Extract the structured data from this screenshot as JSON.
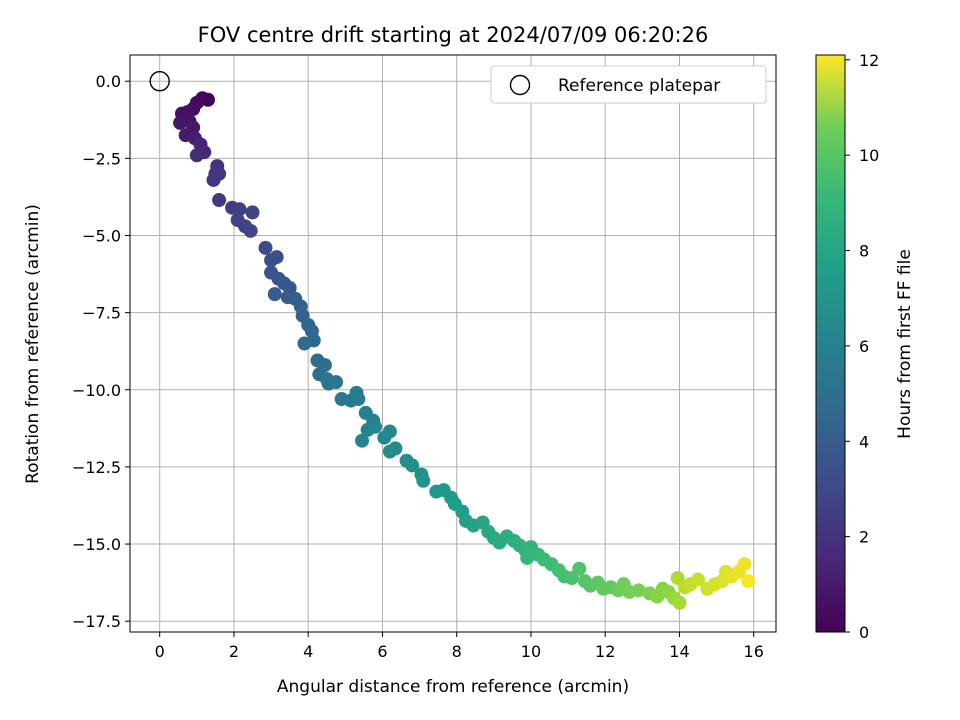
{
  "chart_data": {
    "type": "scatter",
    "title": "FOV centre drift starting at 2024/07/09 06:20:26",
    "xlabel": "Angular distance from reference (arcmin)",
    "ylabel": "Rotation from reference (arcmin)",
    "xlim": [
      -0.8,
      16.6
    ],
    "ylim": [
      -17.85,
      0.85
    ],
    "xticks": [
      0,
      2,
      4,
      6,
      8,
      10,
      12,
      14,
      16
    ],
    "xtick_labels": [
      "0",
      "2",
      "4",
      "6",
      "8",
      "10",
      "12",
      "14",
      "16"
    ],
    "yticks": [
      0.0,
      -2.5,
      -5.0,
      -7.5,
      -10.0,
      -12.5,
      -15.0,
      -17.5
    ],
    "ytick_labels": [
      "0.0",
      "−2.5",
      "−5.0",
      "−7.5",
      "−10.0",
      "−12.5",
      "−15.0",
      "−17.5"
    ],
    "grid": true,
    "legend": {
      "position": "top-right",
      "entries": [
        "Reference platepar"
      ]
    },
    "reference_point": {
      "x": 0.0,
      "y": 0.0
    },
    "colorbar": {
      "label": "Hours from first FF file",
      "range": [
        0,
        12.1
      ],
      "ticks": [
        0,
        2,
        4,
        6,
        8,
        10,
        12
      ],
      "tick_labels": [
        "0",
        "2",
        "4",
        "6",
        "8",
        "10",
        "12"
      ],
      "colormap": "viridis"
    },
    "series": [
      {
        "points": [
          [
            1.3,
            -0.6,
            0.1
          ],
          [
            1.15,
            -0.55,
            0.2
          ],
          [
            1.0,
            -0.7,
            0.3
          ],
          [
            0.9,
            -0.9,
            0.4
          ],
          [
            0.75,
            -1.0,
            0.5
          ],
          [
            0.6,
            -1.05,
            0.55
          ],
          [
            0.8,
            -1.3,
            0.6
          ],
          [
            0.55,
            -1.35,
            0.7
          ],
          [
            0.9,
            -1.5,
            0.8
          ],
          [
            0.7,
            -1.75,
            0.9
          ],
          [
            0.95,
            -1.85,
            1.0
          ],
          [
            1.1,
            -2.05,
            1.2
          ],
          [
            1.2,
            -2.3,
            1.4
          ],
          [
            1.0,
            -2.4,
            1.5
          ],
          [
            1.55,
            -2.75,
            1.7
          ],
          [
            1.5,
            -3.0,
            1.8
          ],
          [
            1.45,
            -3.2,
            1.9
          ],
          [
            1.6,
            -3.0,
            2.0
          ],
          [
            1.6,
            -3.85,
            2.1
          ],
          [
            1.95,
            -4.1,
            2.2
          ],
          [
            2.15,
            -4.15,
            2.3
          ],
          [
            2.1,
            -4.5,
            2.35
          ],
          [
            2.3,
            -4.7,
            2.4
          ],
          [
            2.5,
            -4.25,
            2.5
          ],
          [
            2.45,
            -4.85,
            2.6
          ],
          [
            2.85,
            -5.4,
            2.8
          ],
          [
            3.0,
            -5.8,
            2.9
          ],
          [
            3.15,
            -5.7,
            3.0
          ],
          [
            3.0,
            -6.2,
            3.1
          ],
          [
            3.2,
            -6.4,
            3.2
          ],
          [
            3.35,
            -6.55,
            3.3
          ],
          [
            3.5,
            -6.7,
            3.4
          ],
          [
            3.1,
            -6.9,
            3.45
          ],
          [
            3.45,
            -7.0,
            3.5
          ],
          [
            3.65,
            -7.05,
            3.6
          ],
          [
            3.8,
            -7.3,
            3.7
          ],
          [
            3.85,
            -7.6,
            3.8
          ],
          [
            4.0,
            -7.9,
            3.9
          ],
          [
            4.1,
            -8.1,
            4.0
          ],
          [
            4.15,
            -8.4,
            4.1
          ],
          [
            3.9,
            -8.5,
            4.2
          ],
          [
            4.25,
            -9.05,
            4.3
          ],
          [
            4.45,
            -9.2,
            4.4
          ],
          [
            4.3,
            -9.5,
            4.5
          ],
          [
            4.55,
            -9.8,
            4.6
          ],
          [
            4.5,
            -9.65,
            4.65
          ],
          [
            4.75,
            -9.75,
            4.7
          ],
          [
            4.9,
            -10.3,
            4.8
          ],
          [
            5.15,
            -10.35,
            4.9
          ],
          [
            5.35,
            -10.3,
            5.0
          ],
          [
            5.3,
            -10.1,
            5.05
          ],
          [
            5.55,
            -10.75,
            5.2
          ],
          [
            5.75,
            -11.0,
            5.3
          ],
          [
            5.6,
            -11.3,
            5.4
          ],
          [
            5.45,
            -11.65,
            5.5
          ],
          [
            5.8,
            -11.2,
            5.55
          ],
          [
            6.05,
            -11.55,
            5.6
          ],
          [
            6.2,
            -11.35,
            5.7
          ],
          [
            6.35,
            -11.9,
            5.8
          ],
          [
            6.2,
            -12.0,
            5.9
          ],
          [
            6.65,
            -12.3,
            6.0
          ],
          [
            6.8,
            -12.45,
            6.1
          ],
          [
            7.05,
            -12.75,
            6.2
          ],
          [
            7.1,
            -12.95,
            6.3
          ],
          [
            7.45,
            -13.3,
            6.4
          ],
          [
            7.65,
            -13.25,
            6.5
          ],
          [
            7.85,
            -13.5,
            6.6
          ],
          [
            7.95,
            -13.7,
            6.7
          ],
          [
            8.15,
            -13.95,
            6.8
          ],
          [
            8.25,
            -14.25,
            6.9
          ],
          [
            8.45,
            -14.4,
            7.0
          ],
          [
            8.7,
            -14.3,
            7.1
          ],
          [
            8.85,
            -14.6,
            7.2
          ],
          [
            9.0,
            -14.8,
            7.3
          ],
          [
            9.15,
            -14.95,
            7.4
          ],
          [
            9.35,
            -14.75,
            7.5
          ],
          [
            9.55,
            -14.9,
            7.6
          ],
          [
            9.7,
            -15.05,
            7.7
          ],
          [
            9.85,
            -15.2,
            7.8
          ],
          [
            10.0,
            -15.1,
            7.9
          ],
          [
            9.9,
            -15.45,
            8.0
          ],
          [
            10.2,
            -15.35,
            8.1
          ],
          [
            10.35,
            -15.5,
            8.2
          ],
          [
            10.55,
            -15.65,
            8.3
          ],
          [
            10.75,
            -15.85,
            8.4
          ],
          [
            10.9,
            -16.05,
            8.5
          ],
          [
            11.1,
            -16.1,
            8.6
          ],
          [
            11.3,
            -15.8,
            8.7
          ],
          [
            11.45,
            -16.2,
            8.8
          ],
          [
            11.6,
            -16.35,
            8.9
          ],
          [
            11.8,
            -16.25,
            9.0
          ],
          [
            11.95,
            -16.45,
            9.1
          ],
          [
            12.15,
            -16.4,
            9.2
          ],
          [
            12.35,
            -16.5,
            9.3
          ],
          [
            12.5,
            -16.3,
            9.4
          ],
          [
            12.65,
            -16.55,
            9.5
          ],
          [
            12.9,
            -16.5,
            9.6
          ],
          [
            13.2,
            -16.6,
            9.7
          ],
          [
            13.4,
            -16.7,
            9.8
          ],
          [
            13.55,
            -16.45,
            9.9
          ],
          [
            13.7,
            -16.55,
            10.0
          ],
          [
            13.85,
            -16.75,
            10.2
          ],
          [
            14.0,
            -16.9,
            10.4
          ],
          [
            13.95,
            -16.1,
            10.6
          ],
          [
            14.15,
            -16.4,
            10.8
          ],
          [
            14.3,
            -16.3,
            11.0
          ],
          [
            14.5,
            -16.15,
            11.1
          ],
          [
            14.75,
            -16.45,
            11.2
          ],
          [
            14.95,
            -16.3,
            11.3
          ],
          [
            15.15,
            -16.2,
            11.4
          ],
          [
            15.25,
            -15.9,
            11.5
          ],
          [
            15.4,
            -16.05,
            11.6
          ],
          [
            15.6,
            -15.9,
            11.7
          ],
          [
            15.75,
            -15.65,
            11.8
          ],
          [
            15.85,
            -16.2,
            12.0
          ]
        ]
      }
    ]
  }
}
